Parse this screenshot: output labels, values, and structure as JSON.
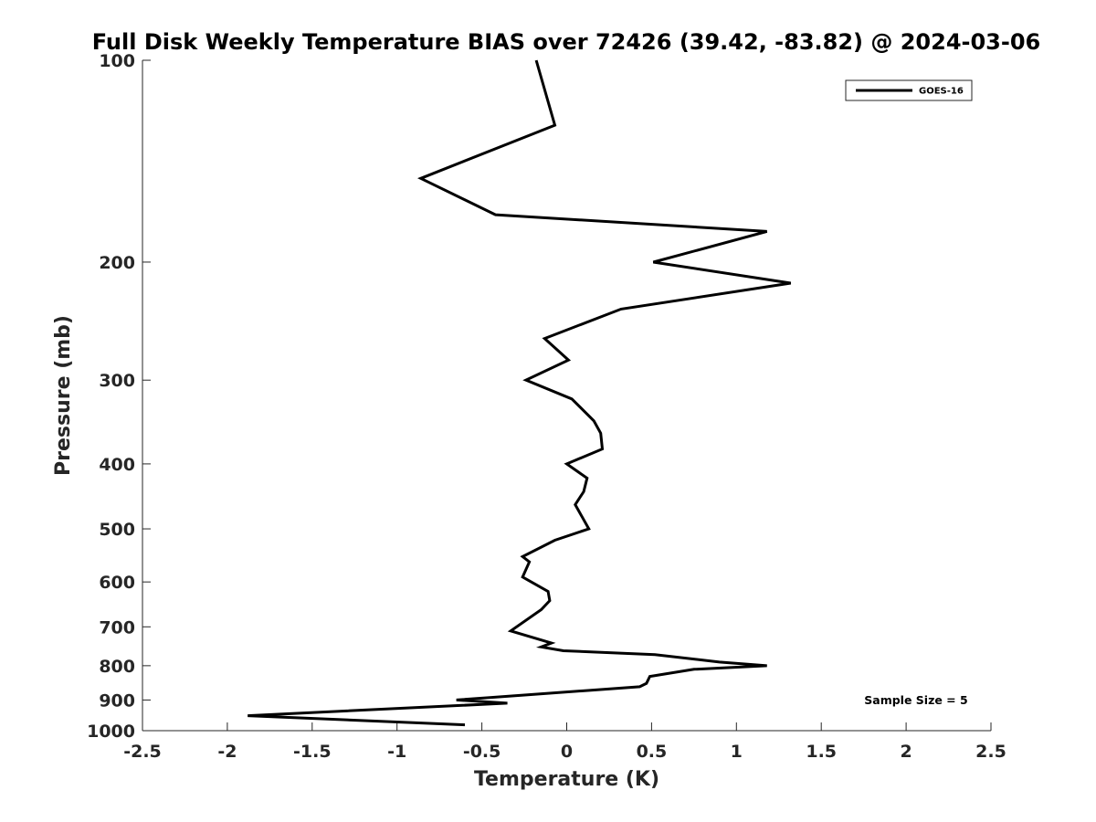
{
  "chart_data": {
    "type": "line",
    "title": "Full Disk Weekly Temperature BIAS over 72426 (39.42, -83.82) @ 2024-03-06",
    "xlabel": "Temperature (K)",
    "ylabel": "Pressure (mb)",
    "xlim": [
      -2.5,
      2.5
    ],
    "ylim": [
      100,
      1000
    ],
    "y_scale": "log",
    "y_reversed": true,
    "x_ticks": [
      "-2.5",
      "-2",
      "-1.5",
      "-1",
      "-0.5",
      "0",
      "0.5",
      "1",
      "1.5",
      "2",
      "2.5"
    ],
    "y_ticks": [
      "100",
      "200",
      "300",
      "400",
      "500",
      "600",
      "700",
      "800",
      "900",
      "1000"
    ],
    "grid": false,
    "legend": {
      "position": "top-right",
      "entries": [
        "GOES-16"
      ]
    },
    "annotation": "Sample Size = 5",
    "series": [
      {
        "name": "GOES-16",
        "color": "#000000",
        "x": [
          -0.18,
          -0.07,
          -0.86,
          -0.42,
          1.18,
          0.51,
          1.32,
          0.32,
          -0.13,
          0.01,
          -0.24,
          0.03,
          0.16,
          0.2,
          0.21,
          0.0,
          0.12,
          0.1,
          0.05,
          0.13,
          -0.07,
          -0.26,
          -0.22,
          -0.26,
          -0.11,
          -0.1,
          -0.15,
          -0.33,
          -0.09,
          -0.15,
          -0.02,
          0.52,
          0.9,
          1.18,
          0.75,
          0.49,
          0.47,
          0.43,
          -0.65,
          -0.35,
          -1.88,
          -0.6
        ],
        "y": [
          100,
          125,
          150,
          170,
          180,
          200,
          215,
          235,
          260,
          280,
          300,
          320,
          345,
          360,
          380,
          400,
          420,
          440,
          460,
          500,
          520,
          550,
          560,
          590,
          620,
          640,
          660,
          710,
          740,
          750,
          760,
          770,
          790,
          800,
          810,
          830,
          850,
          860,
          900,
          910,
          950,
          980
        ]
      }
    ]
  }
}
